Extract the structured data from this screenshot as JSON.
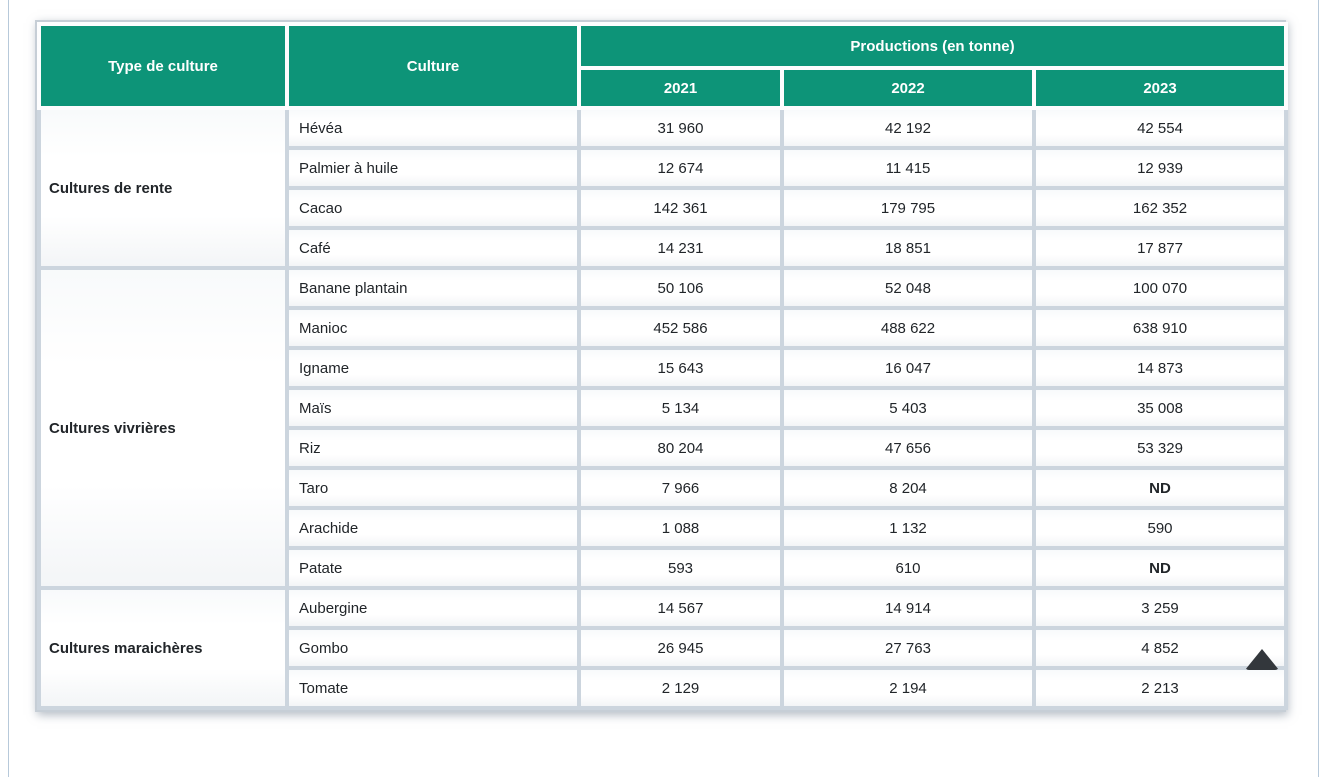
{
  "header": {
    "type_col": "Type de culture",
    "culture_col": "Culture",
    "productions_group": "Productions (en tonne)",
    "years": [
      "2021",
      "2022",
      "2023"
    ]
  },
  "groups": [
    {
      "type": "Cultures de rente",
      "rows": [
        {
          "culture": "Hévéa",
          "values": [
            "31 960",
            "42 192",
            "42 554"
          ]
        },
        {
          "culture": "Palmier à huile",
          "values": [
            "12 674",
            "11 415",
            "12 939"
          ]
        },
        {
          "culture": "Cacao",
          "values": [
            "142 361",
            "179 795",
            "162 352"
          ]
        },
        {
          "culture": "Café",
          "values": [
            "14 231",
            "18 851",
            "17 877"
          ]
        }
      ]
    },
    {
      "type": "Cultures vivrières",
      "rows": [
        {
          "culture": "Banane plantain",
          "values": [
            "50 106",
            "52 048",
            "100 070"
          ]
        },
        {
          "culture": "Manioc",
          "values": [
            "452 586",
            "488 622",
            "638 910"
          ]
        },
        {
          "culture": "Igname",
          "values": [
            "15 643",
            "16 047",
            "14 873"
          ]
        },
        {
          "culture": "Maïs",
          "values": [
            "5 134",
            "5 403",
            "35 008"
          ]
        },
        {
          "culture": "Riz",
          "values": [
            "80 204",
            "47 656",
            "53 329"
          ]
        },
        {
          "culture": "Taro",
          "values": [
            "7 966",
            "8 204",
            "ND"
          ]
        },
        {
          "culture": "Arachide",
          "values": [
            "1 088",
            "1 132",
            "590"
          ]
        },
        {
          "culture": "Patate",
          "values": [
            "593",
            "610",
            "ND"
          ]
        }
      ]
    },
    {
      "type": "Cultures maraichères",
      "rows": [
        {
          "culture": "Aubergine",
          "values": [
            "14 567",
            "14 914",
            "3 259"
          ]
        },
        {
          "culture": "Gombo",
          "values": [
            "26 945",
            "27 763",
            "4 852"
          ]
        },
        {
          "culture": "Tomate",
          "values": [
            "2 129",
            "2 194",
            "2 213"
          ]
        }
      ]
    }
  ],
  "chart_data": {
    "type": "table",
    "title": "Productions (en tonne)",
    "columns": [
      "Type de culture",
      "Culture",
      "2021",
      "2022",
      "2023"
    ],
    "rows": [
      [
        "Cultures de rente",
        "Hévéa",
        31960,
        42192,
        42554
      ],
      [
        "Cultures de rente",
        "Palmier à huile",
        12674,
        11415,
        12939
      ],
      [
        "Cultures de rente",
        "Cacao",
        142361,
        179795,
        162352
      ],
      [
        "Cultures de rente",
        "Café",
        14231,
        18851,
        17877
      ],
      [
        "Cultures vivrières",
        "Banane plantain",
        50106,
        52048,
        100070
      ],
      [
        "Cultures vivrières",
        "Manioc",
        452586,
        488622,
        638910
      ],
      [
        "Cultures vivrières",
        "Igname",
        15643,
        16047,
        14873
      ],
      [
        "Cultures vivrières",
        "Maïs",
        5134,
        5403,
        35008
      ],
      [
        "Cultures vivrières",
        "Riz",
        80204,
        47656,
        53329
      ],
      [
        "Cultures vivrières",
        "Taro",
        7966,
        8204,
        "ND"
      ],
      [
        "Cultures vivrières",
        "Arachide",
        1088,
        1132,
        590
      ],
      [
        "Cultures vivrières",
        "Patate",
        593,
        610,
        "ND"
      ],
      [
        "Cultures maraichères",
        "Aubergine",
        14567,
        14914,
        3259
      ],
      [
        "Cultures maraichères",
        "Gombo",
        26945,
        27763,
        4852
      ],
      [
        "Cultures maraichères",
        "Tomate",
        2129,
        2194,
        2213
      ]
    ]
  },
  "icons": {
    "back_to_top": "triangle-up"
  },
  "colors": {
    "header_green": "#0d9478",
    "header_text": "#ffffff",
    "cell_separator": "#ccd5de",
    "table_border": "#c6ced6",
    "body_text": "#212529",
    "back_to_top_icon": "#33373c",
    "frame_line": "#b7c9da"
  }
}
